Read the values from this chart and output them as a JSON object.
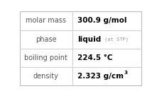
{
  "rows": [
    {
      "label": "molar mass",
      "value": "300.9 g/mol",
      "superscript": null,
      "extra": null
    },
    {
      "label": "phase",
      "value": "liquid",
      "superscript": null,
      "extra": "(at STP)"
    },
    {
      "label": "boiling point",
      "value": "224.5 °C",
      "superscript": null,
      "extra": null
    },
    {
      "label": "density",
      "value": "2.323 g/cm",
      "superscript": "3",
      "extra": null
    }
  ],
  "background_color": "#ffffff",
  "border_color": "#bbbbbb",
  "label_color": "#555555",
  "value_color": "#000000",
  "extra_color": "#999999",
  "divider_color": "#cccccc",
  "col_split": 0.435,
  "label_fontsize": 7.0,
  "value_fontsize": 7.5,
  "extra_fontsize": 5.0,
  "sup_fontsize": 5.2
}
